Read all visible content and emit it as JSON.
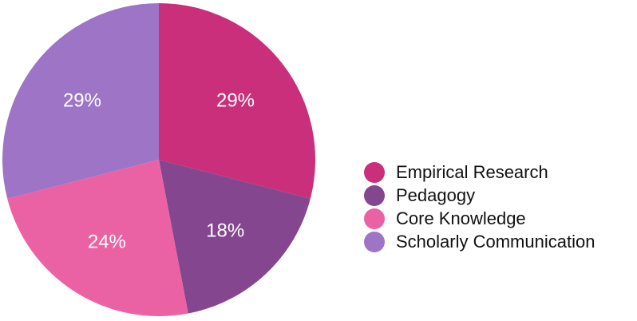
{
  "chart_data": {
    "type": "pie",
    "title": "",
    "start_angle": "12 o'clock",
    "direction": "clockwise",
    "categories": [
      "Empirical Research",
      "Pedagogy",
      "Core Knowledge",
      "Scholarly Communication"
    ],
    "values": [
      29,
      18,
      24,
      29
    ],
    "labels": [
      "29%",
      "18%",
      "24%",
      "29%"
    ],
    "colors": [
      "#c92f7a",
      "#84468f",
      "#eb62a4",
      "#9d74c6"
    ],
    "legend_position": "right"
  },
  "legend": {
    "items": [
      {
        "label": "Empirical Research",
        "color": "#c92f7a"
      },
      {
        "label": "Pedagogy",
        "color": "#84468f"
      },
      {
        "label": "Core Knowledge",
        "color": "#eb62a4"
      },
      {
        "label": "Scholarly Communication",
        "color": "#9d74c6"
      }
    ]
  }
}
